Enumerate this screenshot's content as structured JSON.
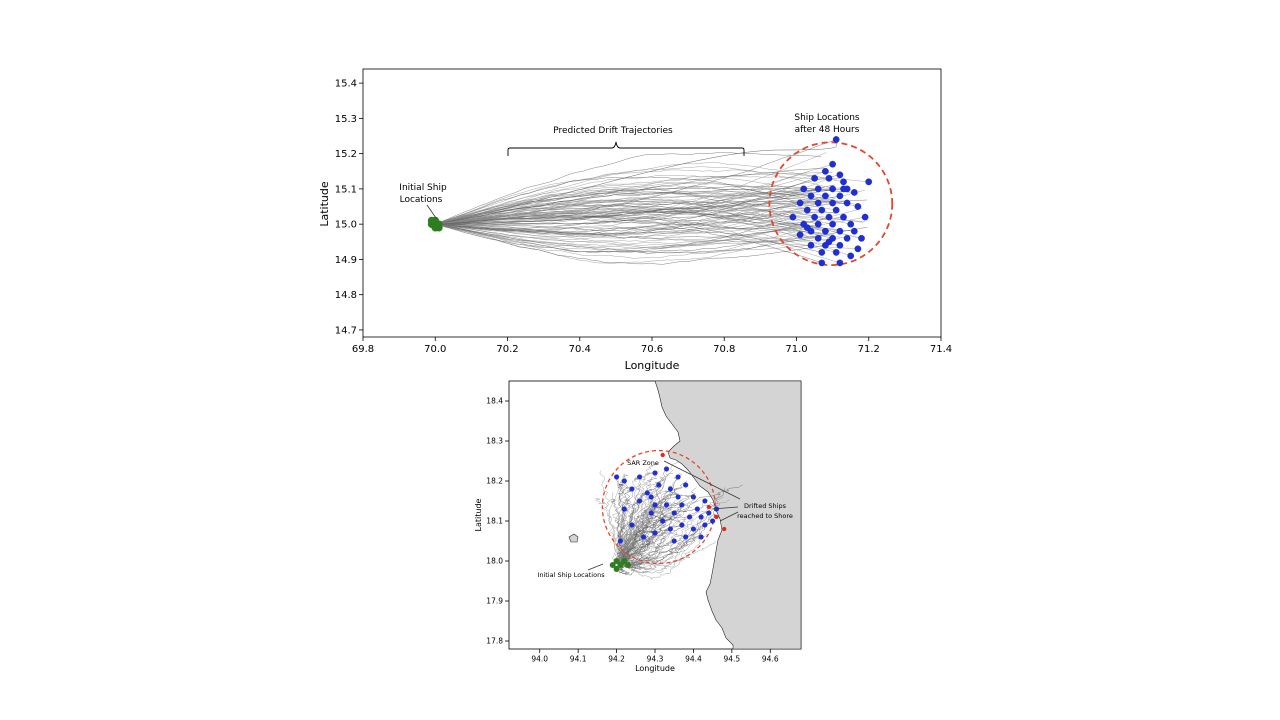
{
  "chart_data": [
    {
      "type": "scatter",
      "title": "",
      "xlabel": "Longitude",
      "ylabel": "Latitude",
      "xlim": [
        69.8,
        71.4
      ],
      "ylim": [
        14.68,
        15.44
      ],
      "xticks": [
        "69.8",
        "70.0",
        "70.2",
        "70.4",
        "70.6",
        "70.8",
        "71.0",
        "71.2",
        "71.4"
      ],
      "yticks": [
        "14.7",
        "14.8",
        "14.9",
        "15.0",
        "15.1",
        "15.2",
        "15.3",
        "15.4"
      ],
      "grid": false,
      "series": [
        {
          "role": "initial",
          "color": "#2e7d1f",
          "points": [
            [
              69.99,
              15.0
            ],
            [
              70.0,
              15.01
            ],
            [
              70.01,
              14.99
            ],
            [
              70.0,
              14.99
            ],
            [
              69.99,
              15.01
            ],
            [
              70.01,
              15.0
            ]
          ]
        },
        {
          "role": "final",
          "color": "#1f2fd6",
          "points": [
            [
              71.11,
              15.24
            ],
            [
              71.1,
              15.17
            ],
            [
              71.08,
              15.15
            ],
            [
              71.12,
              15.14
            ],
            [
              71.09,
              15.13
            ],
            [
              71.13,
              15.12
            ],
            [
              71.05,
              15.13
            ],
            [
              71.2,
              15.12
            ],
            [
              71.02,
              15.1
            ],
            [
              71.06,
              15.1
            ],
            [
              71.1,
              15.1
            ],
            [
              71.14,
              15.1
            ],
            [
              71.16,
              15.09
            ],
            [
              71.04,
              15.08
            ],
            [
              71.08,
              15.08
            ],
            [
              71.12,
              15.08
            ],
            [
              71.01,
              15.06
            ],
            [
              71.06,
              15.06
            ],
            [
              71.1,
              15.06
            ],
            [
              71.14,
              15.06
            ],
            [
              71.17,
              15.05
            ],
            [
              71.03,
              15.04
            ],
            [
              71.07,
              15.04
            ],
            [
              71.11,
              15.04
            ],
            [
              70.99,
              15.02
            ],
            [
              71.05,
              15.02
            ],
            [
              71.09,
              15.02
            ],
            [
              71.13,
              15.02
            ],
            [
              71.19,
              15.02
            ],
            [
              71.02,
              15.0
            ],
            [
              71.06,
              15.0
            ],
            [
              71.1,
              15.0
            ],
            [
              71.15,
              15.0
            ],
            [
              71.04,
              14.98
            ],
            [
              71.08,
              14.98
            ],
            [
              71.12,
              14.98
            ],
            [
              71.16,
              14.98
            ],
            [
              71.01,
              14.97
            ],
            [
              71.06,
              14.96
            ],
            [
              71.1,
              14.96
            ],
            [
              71.14,
              14.96
            ],
            [
              71.04,
              14.94
            ],
            [
              71.08,
              14.94
            ],
            [
              71.12,
              14.94
            ],
            [
              71.17,
              14.93
            ],
            [
              71.07,
              14.92
            ],
            [
              71.11,
              14.92
            ],
            [
              71.15,
              14.91
            ],
            [
              71.07,
              14.89
            ],
            [
              71.12,
              14.89
            ],
            [
              71.09,
              14.95
            ],
            [
              71.18,
              14.96
            ],
            [
              71.03,
              14.99
            ],
            [
              71.13,
              15.1
            ]
          ]
        }
      ],
      "zone_circle": {
        "center": [
          71.095,
          15.058
        ],
        "radius_deg": 0.17,
        "color": "#e4472a"
      },
      "annotations": {
        "initial": [
          "Initial Ship",
          "Locations"
        ],
        "trajectories": "Predicted Drift Trajectories",
        "final": [
          "Ship Locations",
          "after 48 Hours"
        ]
      }
    },
    {
      "type": "scatter",
      "title": "",
      "xlabel": "Longitude",
      "ylabel": "Latitude",
      "xlim": [
        93.92,
        94.68
      ],
      "ylim": [
        17.78,
        18.45
      ],
      "xticks": [
        "94.0",
        "94.1",
        "94.2",
        "94.3",
        "94.4",
        "94.5",
        "94.6"
      ],
      "yticks": [
        "17.8",
        "17.9",
        "18.0",
        "18.1",
        "18.2",
        "18.3",
        "18.4"
      ],
      "grid": false,
      "series": [
        {
          "role": "initial",
          "color": "#2e7d1f",
          "points": [
            [
              94.19,
              17.99
            ],
            [
              94.2,
              18.0
            ],
            [
              94.21,
              17.99
            ],
            [
              94.22,
              18.0
            ],
            [
              94.2,
              17.98
            ],
            [
              94.23,
              17.99
            ]
          ]
        },
        {
          "role": "final",
          "color": "#1f2fd6",
          "points": [
            [
              94.33,
              18.23
            ],
            [
              94.3,
              18.22
            ],
            [
              94.26,
              18.21
            ],
            [
              94.36,
              18.21
            ],
            [
              94.2,
              18.21
            ],
            [
              94.22,
              18.2
            ],
            [
              94.31,
              18.19
            ],
            [
              94.34,
              18.18
            ],
            [
              94.38,
              18.19
            ],
            [
              94.24,
              18.18
            ],
            [
              94.28,
              18.17
            ],
            [
              94.36,
              18.16
            ],
            [
              94.4,
              18.16
            ],
            [
              94.43,
              18.15
            ],
            [
              94.26,
              18.15
            ],
            [
              94.3,
              18.14
            ],
            [
              94.33,
              18.14
            ],
            [
              94.37,
              18.14
            ],
            [
              94.41,
              18.13
            ],
            [
              94.44,
              18.12
            ],
            [
              94.29,
              18.12
            ],
            [
              94.35,
              18.12
            ],
            [
              94.39,
              18.11
            ],
            [
              94.42,
              18.11
            ],
            [
              94.45,
              18.1
            ],
            [
              94.32,
              18.1
            ],
            [
              94.37,
              18.09
            ],
            [
              94.4,
              18.08
            ],
            [
              94.43,
              18.09
            ],
            [
              94.34,
              18.08
            ],
            [
              94.3,
              18.07
            ],
            [
              94.38,
              18.06
            ],
            [
              94.42,
              18.06
            ],
            [
              94.27,
              18.06
            ],
            [
              94.35,
              18.05
            ],
            [
              94.24,
              18.09
            ],
            [
              94.22,
              18.13
            ],
            [
              94.21,
              18.05
            ],
            [
              94.29,
              18.16
            ],
            [
              94.46,
              18.13
            ]
          ]
        },
        {
          "role": "shore",
          "color": "#e02a1c",
          "points": [
            [
              94.32,
              18.265
            ],
            [
              94.44,
              18.135
            ],
            [
              94.46,
              18.11
            ],
            [
              94.48,
              18.08
            ]
          ]
        }
      ],
      "zone_circle": {
        "center": [
          94.31,
          18.135
        ],
        "radius_deg": 0.147,
        "color": "#e4472a"
      },
      "annotations": {
        "zone": "SAR Zone",
        "shore": [
          "Drifted Ships",
          "reached to Shore"
        ],
        "initial": "Initial Ship Locations"
      }
    }
  ]
}
